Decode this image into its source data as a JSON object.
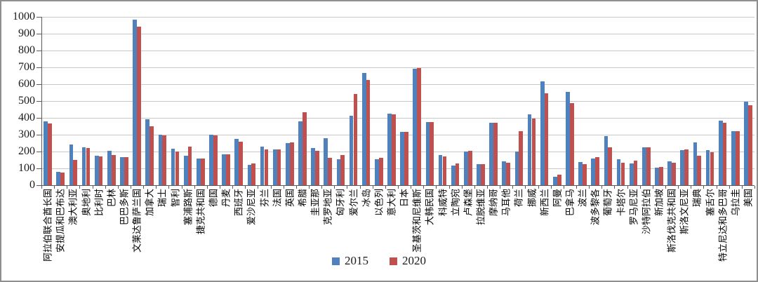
{
  "chart_data": {
    "type": "bar",
    "title": "",
    "xlabel": "",
    "ylabel": "",
    "ylim": [
      0,
      1000
    ],
    "ytick_step": 100,
    "grid": true,
    "legend_position": "bottom-center",
    "categories": [
      "阿拉伯联合酋长国",
      "安提瓜和巴布达",
      "澳大利亚",
      "奥地利",
      "比利时",
      "巴林",
      "巴巴多斯",
      "文莱达鲁萨兰国",
      "加拿大",
      "瑞士",
      "智利",
      "塞浦路斯",
      "捷克共和国",
      "德国",
      "丹麦",
      "西班牙",
      "爱沙尼亚",
      "芬兰",
      "法国",
      "英国",
      "希腊",
      "圭亚那",
      "克罗地亚",
      "匈牙利",
      "爱尔兰",
      "冰岛",
      "以色列",
      "意大利",
      "日本",
      "圣基茨和尼维斯",
      "大韩民国",
      "科威特",
      "立陶宛",
      "卢森堡",
      "拉脱维亚",
      "摩纳哥",
      "马耳他",
      "荷兰",
      "挪威",
      "新西兰",
      "阿曼",
      "巴拿马",
      "波兰",
      "波多黎各",
      "葡萄牙",
      "卡塔尔",
      "罗马尼亚",
      "沙特阿拉伯",
      "新加坡",
      "斯洛伐克共和国",
      "斯洛文尼亚",
      "瑞典",
      "塞舌尔",
      "特立尼达和多巴哥",
      "乌拉圭",
      "美国"
    ],
    "series": [
      {
        "name": "2015",
        "color": "#4F81BD",
        "values": [
          380,
          80,
          242,
          225,
          177,
          206,
          168,
          985,
          391,
          300,
          217,
          176,
          158,
          300,
          185,
          277,
          120,
          228,
          214,
          248,
          379,
          220,
          281,
          153,
          411,
          668,
          155,
          424,
          318,
          690,
          377,
          178,
          117,
          201,
          124,
          372,
          142,
          198,
          420,
          615,
          50,
          556,
          136,
          158,
          292,
          154,
          131,
          226,
          105,
          140,
          210,
          256,
          210,
          385,
          322,
          495
        ]
      },
      {
        "name": "2020",
        "color": "#C0504D",
        "values": [
          368,
          75,
          150,
          221,
          170,
          180,
          165,
          940,
          352,
          294,
          200,
          228,
          158,
          294,
          185,
          260,
          128,
          212,
          212,
          253,
          432,
          206,
          164,
          181,
          540,
          625,
          162,
          420,
          316,
          696,
          377,
          171,
          130,
          206,
          124,
          372,
          132,
          320,
          396,
          546,
          63,
          487,
          123,
          168,
          227,
          135,
          147,
          226,
          108,
          134,
          214,
          175,
          196,
          370,
          322,
          476
        ]
      }
    ]
  },
  "axes": {
    "y_tick_labels": [
      "0",
      "100",
      "200",
      "300",
      "400",
      "500",
      "600",
      "700",
      "800",
      "900",
      "1000"
    ]
  },
  "legend": {
    "items": [
      {
        "label": "2015",
        "color": "#4F81BD"
      },
      {
        "label": "2020",
        "color": "#C0504D"
      }
    ]
  }
}
